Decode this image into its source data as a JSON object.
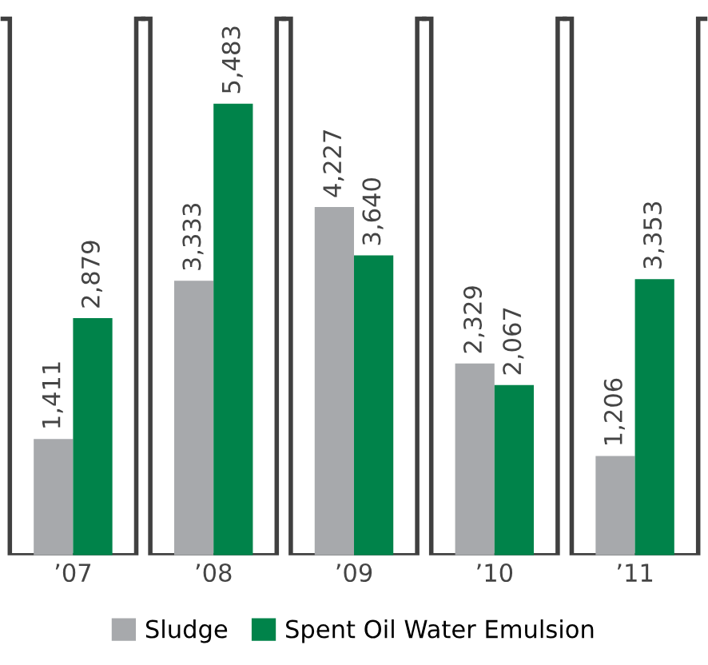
{
  "chart_data": {
    "type": "bar",
    "categories": [
      "’07",
      "’08",
      "’09",
      "’10",
      "’11"
    ],
    "series": [
      {
        "name": "Sludge",
        "color": "#a7a9ac",
        "values": [
          1411,
          3333,
          4227,
          2329,
          1206
        ],
        "value_labels": [
          "1,411",
          "3,333",
          "4,227",
          "2,329",
          "1,206"
        ]
      },
      {
        "name": "Spent Oil Water Emulsion",
        "color": "#00834a",
        "values": [
          2879,
          5483,
          3640,
          2067,
          3353
        ],
        "value_labels": [
          "2,879",
          "5,483",
          "3,640",
          "2,067",
          "3,353"
        ]
      }
    ],
    "legend": "bottom",
    "grid": false
  }
}
